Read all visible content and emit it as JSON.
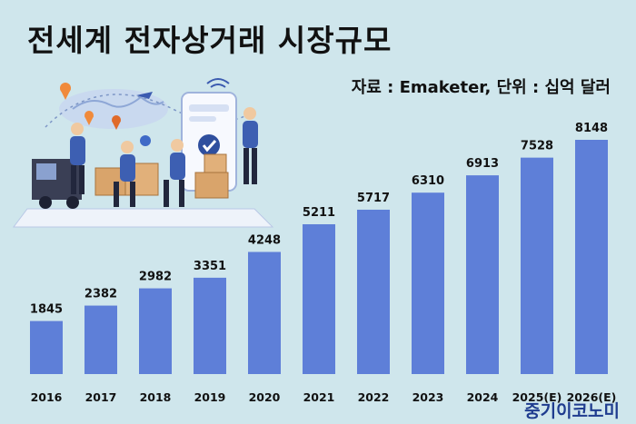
{
  "title": "전세계 전자상거래 시장규모",
  "source": "자료 : Emaketer, 단위 : 십억 달러",
  "brand": "중기이코노미",
  "colors": {
    "background": "#cfe6ec",
    "bar": "#5e7fd8",
    "text": "#111111",
    "brand": "#1f3c8f"
  },
  "chart_data": {
    "type": "bar",
    "title": "전세계 전자상거래 시장규모",
    "unit": "십억 달러",
    "source": "Emaketer",
    "categories": [
      "2016",
      "2017",
      "2018",
      "2019",
      "2020",
      "2021",
      "2022",
      "2023",
      "2024",
      "2025(E)",
      "2026(E)"
    ],
    "values": [
      1845,
      2382,
      2982,
      3351,
      4248,
      5211,
      5717,
      6310,
      6913,
      7528,
      8148
    ],
    "xlabel": "",
    "ylabel": "",
    "ylim": [
      0,
      8148
    ],
    "grid": false,
    "data_labels": true
  }
}
